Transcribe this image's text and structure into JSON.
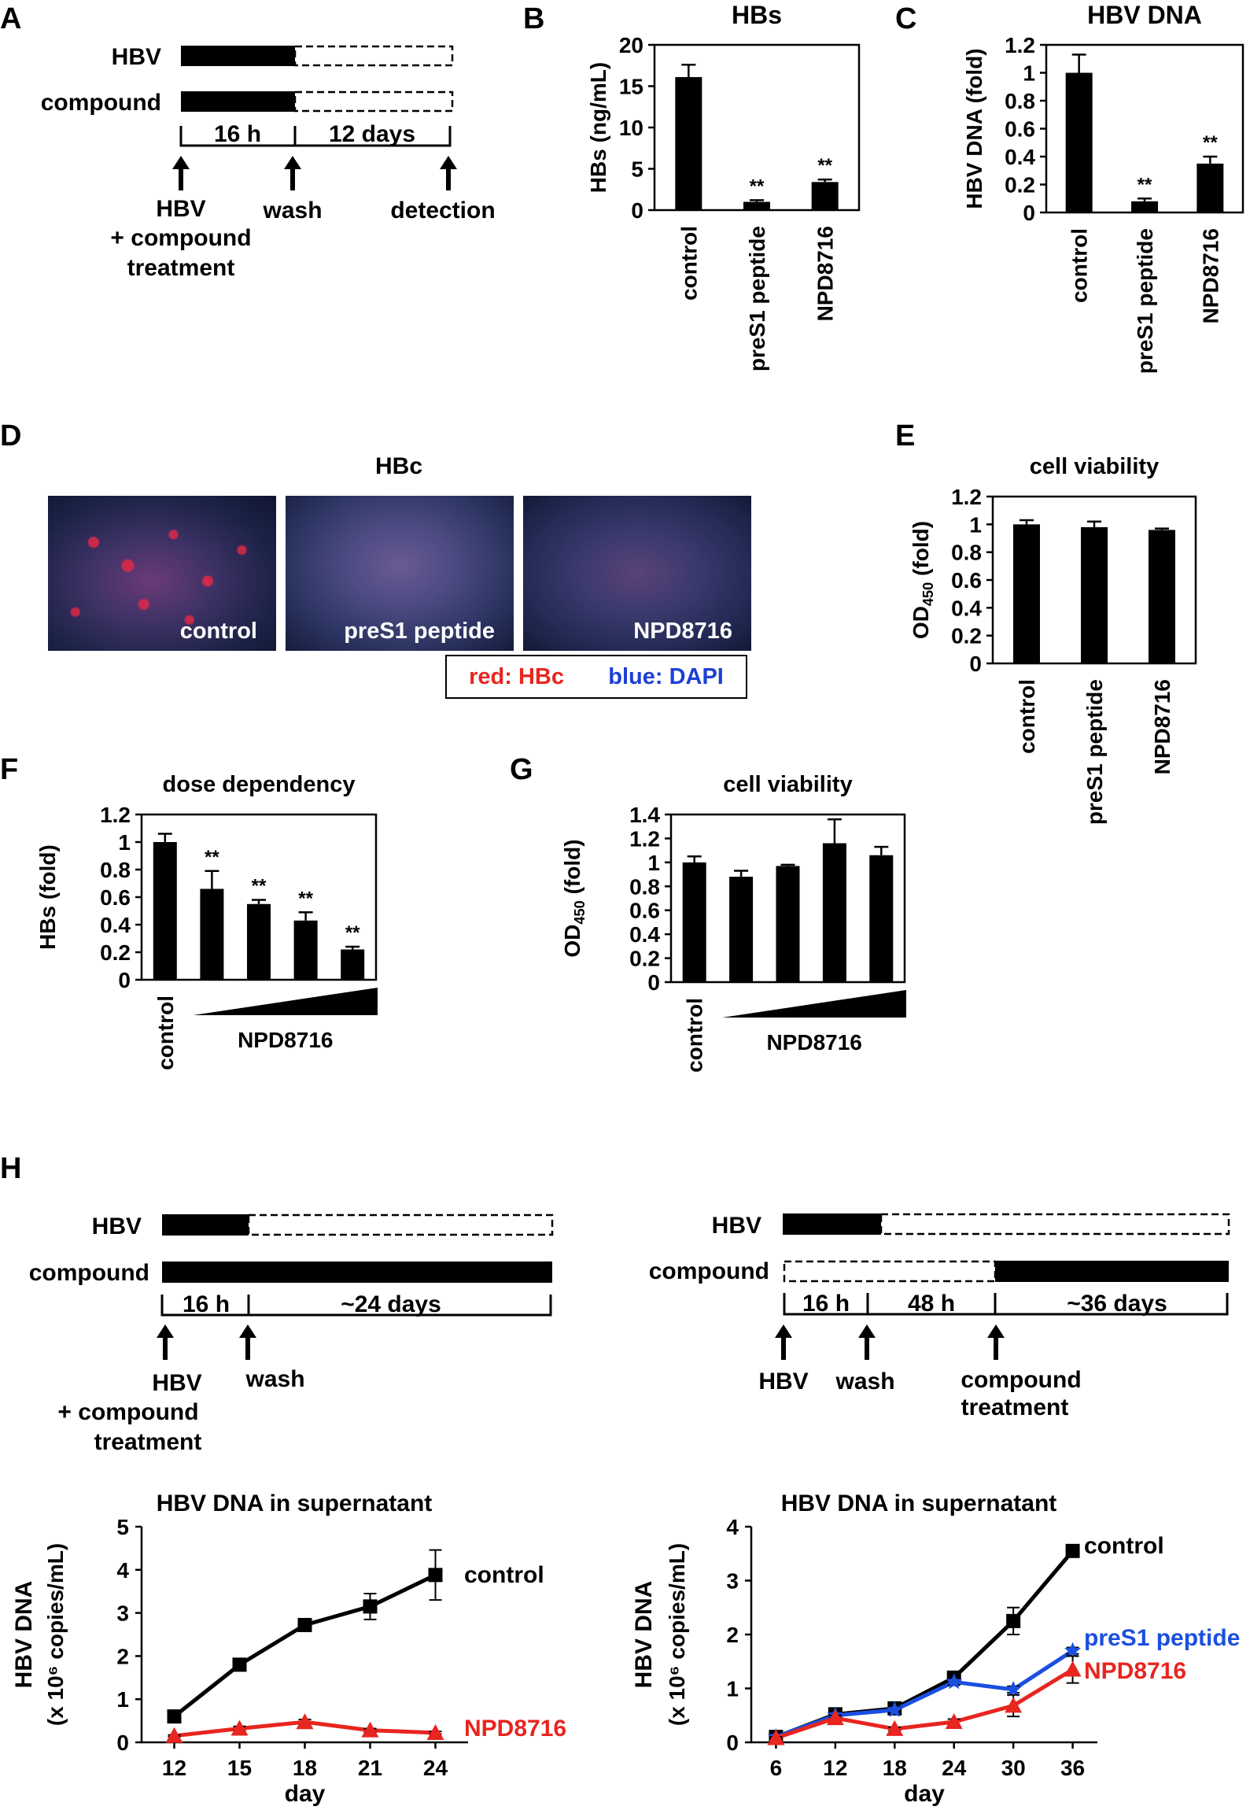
{
  "panel_letters": {
    "A": "A",
    "B": "B",
    "C": "C",
    "D": "D",
    "E": "E",
    "F": "F",
    "G": "G",
    "H": "H"
  },
  "colors": {
    "bar": "#000000",
    "red_series": "#e8251f",
    "blue_series": "#1b4fe0",
    "legend_red": "#e8251f",
    "legend_blue": "#1d3fd6"
  },
  "schemes": {
    "A": {
      "row1": "HBV",
      "row2": "compound",
      "period1": "16 h",
      "period2": "12 days",
      "arrow1": [
        "HBV",
        "+ compound",
        "treatment"
      ],
      "arrow2": "wash",
      "arrow3": "detection"
    },
    "H_left": {
      "row1": "HBV",
      "row2": "compound",
      "period1": "16 h",
      "period2": "~24 days",
      "arrow1": [
        "HBV",
        "+ compound",
        "treatment"
      ],
      "arrow2": "wash"
    },
    "H_right": {
      "row1": "HBV",
      "row2": "compound",
      "period1": "16 h",
      "period2": "48 h",
      "period3": "~36 days",
      "arrow1": "HBV",
      "arrow2": "wash",
      "arrow3": [
        "compound",
        "treatment"
      ]
    }
  },
  "micrographs": {
    "title": "HBc",
    "images": [
      {
        "label": "control",
        "icon": "micrograph-image"
      },
      {
        "label": "preS1 peptide",
        "icon": "micrograph-image"
      },
      {
        "label": "NPD8716",
        "icon": "micrograph-image"
      }
    ],
    "legend": {
      "red": "red: HBc",
      "blue": "blue: DAPI"
    }
  },
  "chart_data": [
    {
      "id": "B",
      "type": "bar",
      "title": "HBs",
      "ylabel": "HBs (ng/mL)",
      "categories": [
        "control",
        "preS1 peptide",
        "NPD8716"
      ],
      "values": [
        16.1,
        1.0,
        3.4
      ],
      "errors": [
        1.5,
        0.2,
        0.3
      ],
      "annotations": [
        "",
        "**",
        "**"
      ],
      "ylim": [
        0,
        20
      ],
      "yticks": [
        0,
        5,
        10,
        15,
        20
      ]
    },
    {
      "id": "C",
      "type": "bar",
      "title": "HBV DNA",
      "ylabel": "HBV DNA (fold)",
      "categories": [
        "control",
        "preS1 peptide",
        "NPD8716"
      ],
      "values": [
        1.0,
        0.08,
        0.35
      ],
      "errors": [
        0.13,
        0.02,
        0.05
      ],
      "annotations": [
        "",
        "**",
        "**"
      ],
      "ylim": [
        0,
        1.2
      ],
      "yticks": [
        0,
        0.2,
        0.4,
        0.6,
        0.8,
        1,
        1.2
      ]
    },
    {
      "id": "E",
      "type": "bar",
      "title": "cell viability",
      "ylabel": "OD450 (fold)",
      "ylabel_main": "OD",
      "ylabel_sub": "450",
      "ylabel_rest": " (fold)",
      "categories": [
        "control",
        "preS1 peptide",
        "NPD8716"
      ],
      "values": [
        1.0,
        0.98,
        0.96
      ],
      "errors": [
        0.03,
        0.04,
        0.01
      ],
      "annotations": [
        "",
        "",
        ""
      ],
      "ylim": [
        0,
        1.2
      ],
      "yticks": [
        0,
        0.2,
        0.4,
        0.6,
        0.8,
        1,
        1.2
      ]
    },
    {
      "id": "F",
      "type": "bar",
      "title": "dose dependency",
      "ylabel": "HBs (fold)",
      "categories": [
        "control",
        "",
        "",
        "",
        ""
      ],
      "category_label": "control",
      "dose_label": "NPD8716",
      "values": [
        1.0,
        0.66,
        0.55,
        0.43,
        0.22
      ],
      "errors": [
        0.06,
        0.13,
        0.03,
        0.06,
        0.02
      ],
      "annotations": [
        "",
        "**",
        "**",
        "**",
        "**"
      ],
      "ylim": [
        0,
        1.2
      ],
      "yticks": [
        0,
        0.2,
        0.4,
        0.6,
        0.8,
        1,
        1.2
      ]
    },
    {
      "id": "G",
      "type": "bar",
      "title": "cell viability",
      "ylabel": "OD450 (fold)",
      "ylabel_main": "OD",
      "ylabel_sub": "450",
      "ylabel_rest": " (fold)",
      "categories": [
        "control",
        "",
        "",
        "",
        ""
      ],
      "category_label": "control",
      "dose_label": "NPD8716",
      "values": [
        1.0,
        0.88,
        0.97,
        1.16,
        1.06
      ],
      "errors": [
        0.05,
        0.05,
        0.01,
        0.2,
        0.07
      ],
      "annotations": [
        "",
        "",
        "",
        "",
        ""
      ],
      "ylim": [
        0,
        1.4
      ],
      "yticks": [
        0,
        0.2,
        0.4,
        0.6,
        0.8,
        1,
        1.2,
        1.4
      ]
    },
    {
      "id": "H1",
      "type": "line",
      "title": "HBV DNA in supernatant",
      "ylabel": "HBV DNA",
      "ylabel2": "(x 10⁶ copies/mL)",
      "xlabel": "day",
      "x": [
        12,
        15,
        18,
        21,
        24
      ],
      "xlim": [
        10.5,
        25.5
      ],
      "ylim": [
        0,
        5
      ],
      "yticks": [
        0,
        1,
        2,
        3,
        4,
        5
      ],
      "series": [
        {
          "name": "control",
          "marker": "square",
          "values": [
            0.6,
            1.8,
            2.72,
            3.15,
            3.88
          ],
          "errors": [
            0.1,
            0.1,
            0.1,
            0.3,
            0.58
          ]
        },
        {
          "name": "NPD8716",
          "marker": "triangle",
          "values": [
            0.15,
            0.32,
            0.47,
            0.28,
            0.22
          ],
          "errors": [
            0.02,
            0.05,
            0.06,
            0.04,
            0.03
          ]
        }
      ]
    },
    {
      "id": "H2",
      "type": "line",
      "title": "HBV DNA in supernatant",
      "ylabel": "HBV DNA",
      "ylabel2": "(x 10⁶ copies/mL)",
      "xlabel": "day",
      "x": [
        6,
        12,
        18,
        24,
        30,
        36
      ],
      "xlim": [
        3.5,
        38.5
      ],
      "ylim": [
        0,
        4
      ],
      "yticks": [
        0,
        1,
        2,
        3,
        4
      ],
      "series": [
        {
          "name": "control",
          "marker": "square",
          "values": [
            0.1,
            0.52,
            0.63,
            1.2,
            2.25,
            3.55
          ],
          "errors": [
            0.03,
            0.06,
            0.06,
            0.08,
            0.25,
            0.08
          ]
        },
        {
          "name": "preS1 peptide",
          "marker": "star",
          "values": [
            0.1,
            0.5,
            0.6,
            1.12,
            0.98,
            1.7
          ],
          "errors": [
            0.02,
            0.05,
            0.05,
            0.06,
            0.06,
            0.06
          ]
        },
        {
          "name": "NPD8716",
          "marker": "triangle",
          "values": [
            0.08,
            0.45,
            0.25,
            0.38,
            0.68,
            1.35
          ],
          "errors": [
            0.02,
            0.05,
            0.03,
            0.05,
            0.2,
            0.25
          ]
        }
      ]
    }
  ]
}
